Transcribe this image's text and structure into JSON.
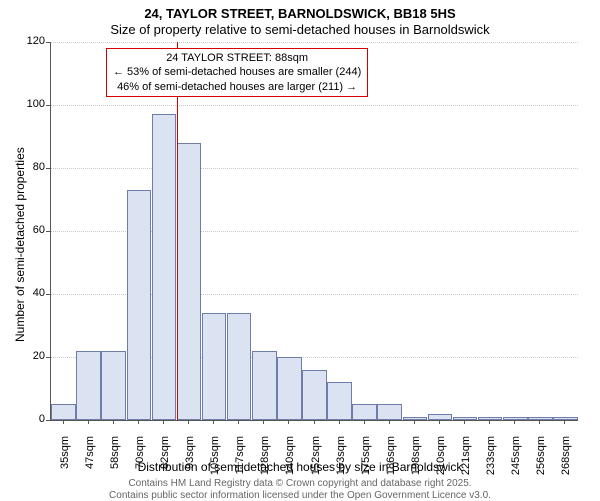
{
  "chart": {
    "type": "histogram",
    "title_main": "24, TAYLOR STREET, BARNOLDSWICK, BB18 5HS",
    "title_sub": "Size of property relative to semi-detached houses in Barnoldswick",
    "title_fontsize": 13,
    "y_axis_label": "Number of semi-detached properties",
    "x_axis_label": "Distribution of semi-detached houses by size in Barnoldswick",
    "axis_label_fontsize": 12,
    "tick_label_fontsize": 11,
    "background_color": "#ffffff",
    "grid_color": "#c8c8c8",
    "axis_color": "#555555",
    "y_ticks": [
      0,
      20,
      40,
      60,
      80,
      100,
      120
    ],
    "ylim": [
      0,
      120
    ],
    "x_tick_labels": [
      "35sqm",
      "47sqm",
      "58sqm",
      "70sqm",
      "82sqm",
      "93sqm",
      "105sqm",
      "117sqm",
      "128sqm",
      "140sqm",
      "152sqm",
      "163sqm",
      "175sqm",
      "186sqm",
      "198sqm",
      "210sqm",
      "221sqm",
      "233sqm",
      "245sqm",
      "256sqm",
      "268sqm"
    ],
    "bar_color": "#dbe3f2",
    "bar_border_color": "#6f7ea8",
    "bar_values": [
      5,
      22,
      22,
      73,
      97,
      88,
      34,
      34,
      22,
      20,
      16,
      12,
      5,
      5,
      1,
      2,
      1,
      1,
      1,
      1,
      1
    ],
    "reference_line": {
      "color": "#d40000",
      "position_category_index": 5,
      "position_fraction_in_bar": 0.0
    },
    "annotation": {
      "border_color": "#d40000",
      "lines": [
        "24 TAYLOR STREET: 88sqm",
        "← 53% of semi-detached houses are smaller (244)",
        "46% of semi-detached houses are larger (211) →"
      ],
      "fontsize": 11
    },
    "footer_line1": "Contains HM Land Registry data © Crown copyright and database right 2025.",
    "footer_line2": "Contains public sector information licensed under the Open Government Licence v3.0.",
    "footer_fontsize": 10,
    "footer_color": "#666666"
  }
}
